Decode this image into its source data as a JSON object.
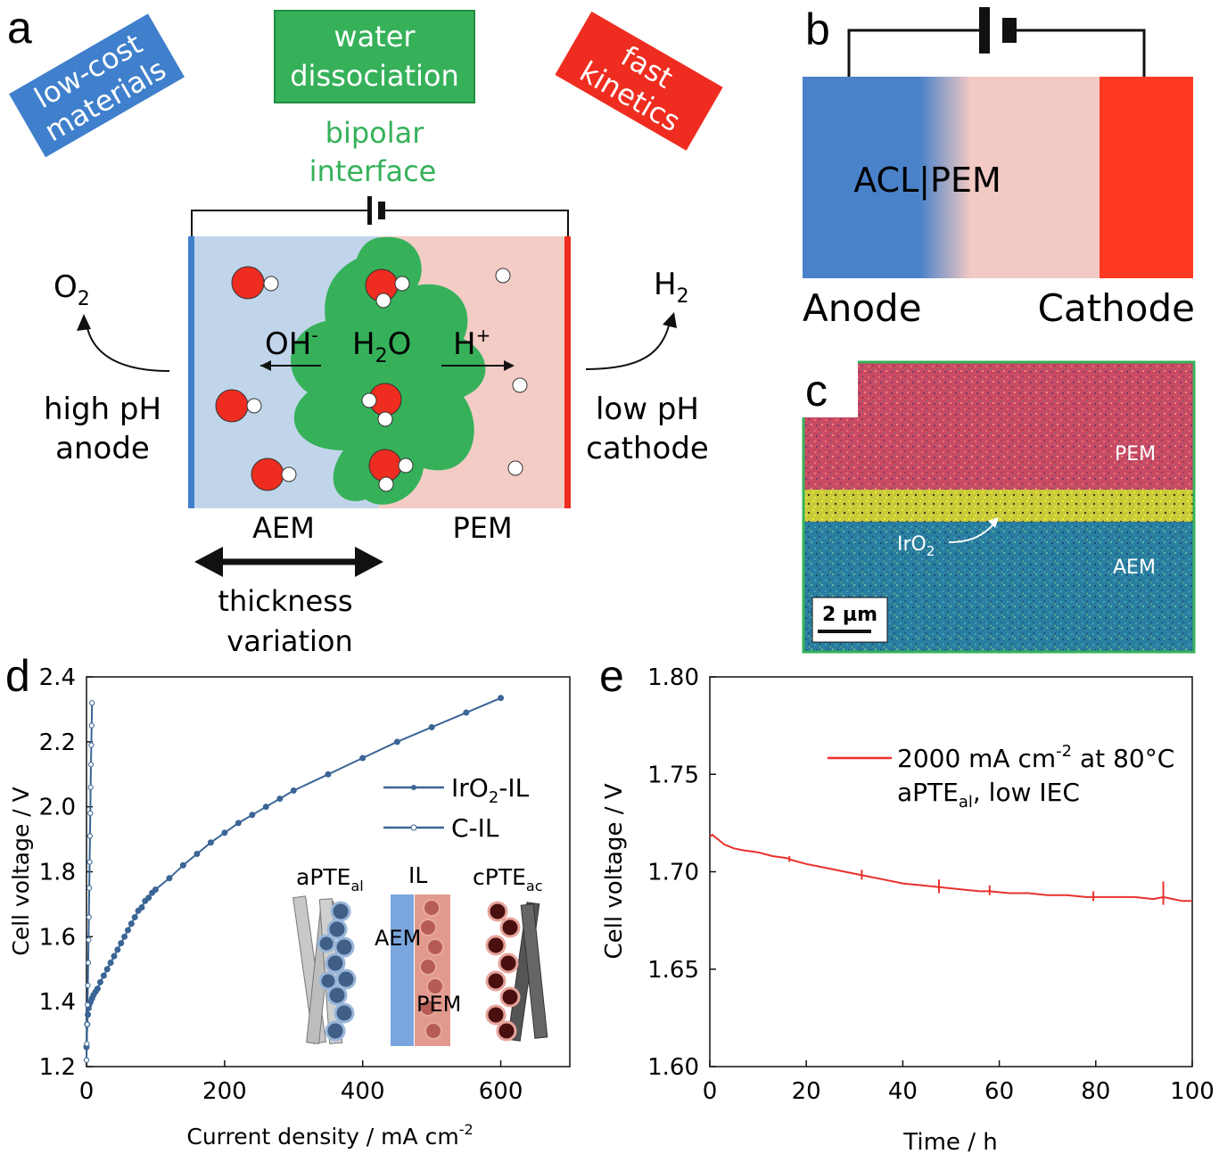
{
  "panel_a": {
    "letter": "a",
    "box_blue": [
      "low-cost",
      "materials"
    ],
    "box_green": [
      "water",
      "dissociation"
    ],
    "box_red": [
      "fast",
      "kinetics"
    ],
    "bipolar": [
      "bipolar",
      "interface"
    ],
    "o2": "O",
    "o2_sub": "2",
    "h2": "H",
    "h2_sub": "2",
    "oh": "OH",
    "oh_sup": "-",
    "h2o": "H",
    "h2o_sub": "2",
    "h2o_o": "O",
    "hplus": "H",
    "hplus_sup": "+",
    "anode_text": [
      "high pH",
      "anode"
    ],
    "cathode_text": [
      "low pH",
      "cathode"
    ],
    "aem": "AEM",
    "pem": "PEM",
    "thickness": [
      "thickness",
      "variation"
    ],
    "colors": {
      "blue": "#3f7fcc",
      "green": "#36b15a",
      "red": "#ee2d20",
      "aem_fill": "#c0d5ea",
      "pem_fill": "#f3ccc6"
    }
  },
  "panel_b": {
    "letter": "b",
    "center_label": "ACL|PEM",
    "anode": "Anode",
    "cathode": "Cathode"
  },
  "panel_c": {
    "letter": "c",
    "pem": "PEM",
    "aem": "AEM",
    "iro2": "IrO",
    "iro2_sub": "2",
    "scale": "2 µm"
  },
  "panel_d": {
    "letter": "d",
    "inset": {
      "aPTE": "aPTE",
      "aPTE_sub": "al",
      "il": "IL",
      "cPTE": "cPTE",
      "cPTE_sub": "ac",
      "aem": "AEM",
      "pem": "PEM"
    }
  },
  "panel_e": {
    "letter": "e"
  },
  "chart_data": [
    {
      "type": "line",
      "panel": "d",
      "xlabel": "Current density / mA cm",
      "xlabel_sup": "-2",
      "ylabel": "Cell voltage / V",
      "xlim": [
        0,
        700
      ],
      "ylim": [
        1.2,
        2.4
      ],
      "xticks": [
        0,
        200,
        400,
        600
      ],
      "yticks": [
        1.2,
        1.4,
        1.6,
        1.8,
        2.0,
        2.2,
        2.4
      ],
      "yticklabels": [
        "1.2",
        "1.4",
        "1.6",
        "1.8",
        "2.0",
        "2.2",
        "2.4"
      ],
      "legend_position": "right",
      "series": [
        {
          "name": "IrO2-IL",
          "legend_main": "IrO",
          "legend_sub": "2",
          "legend_tail": "-IL",
          "marker": "filled",
          "color": "#3a6595",
          "x": [
            0,
            1,
            2,
            3,
            4,
            6,
            8,
            10,
            13,
            16,
            20,
            25,
            30,
            35,
            40,
            45,
            50,
            55,
            60,
            65,
            70,
            75,
            80,
            85,
            90,
            95,
            100,
            120,
            140,
            160,
            180,
            200,
            220,
            240,
            260,
            280,
            300,
            350,
            400,
            450,
            500,
            550,
            600
          ],
          "y": [
            1.26,
            1.33,
            1.36,
            1.38,
            1.39,
            1.4,
            1.41,
            1.42,
            1.43,
            1.44,
            1.46,
            1.48,
            1.5,
            1.52,
            1.54,
            1.56,
            1.58,
            1.6,
            1.62,
            1.64,
            1.66,
            1.68,
            1.69,
            1.71,
            1.72,
            1.735,
            1.745,
            1.78,
            1.82,
            1.855,
            1.89,
            1.92,
            1.95,
            1.975,
            2.0,
            2.025,
            2.05,
            2.1,
            2.15,
            2.2,
            2.245,
            2.29,
            2.335
          ]
        },
        {
          "name": "C-IL",
          "legend_main": "C-IL",
          "marker": "open",
          "color": "#3a6595",
          "x": [
            0,
            0.5,
            1,
            1.5,
            2,
            2.5,
            3,
            3.5,
            4,
            4.5,
            5,
            5.5,
            6,
            6.5,
            7,
            7.5,
            8
          ],
          "y": [
            1.22,
            1.27,
            1.33,
            1.39,
            1.45,
            1.52,
            1.59,
            1.66,
            1.75,
            1.83,
            1.91,
            1.98,
            2.06,
            2.13,
            2.19,
            2.25,
            2.32
          ]
        }
      ]
    },
    {
      "type": "line",
      "panel": "e",
      "xlabel": "Time / h",
      "ylabel": "Cell voltage / V",
      "xlim": [
        0,
        100
      ],
      "ylim": [
        1.6,
        1.8
      ],
      "xticks": [
        0,
        20,
        40,
        60,
        80,
        100
      ],
      "yticks": [
        1.6,
        1.65,
        1.7,
        1.75,
        1.8
      ],
      "yticklabels": [
        "1.60",
        "1.65",
        "1.70",
        "1.75",
        "1.80"
      ],
      "legend_position": "top-right",
      "legend_line1": "2000 mA cm",
      "legend_line1_sup": "-2",
      "legend_line1_tail": " at 80°C",
      "legend_line2": "aPTE",
      "legend_line2_sub": "al",
      "legend_line2_tail": ", low IEC",
      "series": [
        {
          "name": "2000 mA cm-2 at 80°C, aPTEal, low IEC",
          "color": "#e8312d",
          "x": [
            0,
            0.5,
            1,
            2,
            3,
            4,
            5,
            7,
            10,
            13,
            16,
            17,
            20,
            24,
            28,
            32,
            36,
            40,
            44,
            48,
            52,
            56,
            58,
            62,
            66,
            70,
            74,
            78,
            80,
            84,
            88,
            92,
            94,
            96,
            98,
            100
          ],
          "y": [
            1.718,
            1.719,
            1.718,
            1.716,
            1.714,
            1.713,
            1.712,
            1.711,
            1.71,
            1.708,
            1.707,
            1.706,
            1.704,
            1.702,
            1.7,
            1.698,
            1.696,
            1.694,
            1.693,
            1.692,
            1.691,
            1.69,
            1.69,
            1.689,
            1.689,
            1.688,
            1.688,
            1.687,
            1.687,
            1.687,
            1.687,
            1.686,
            1.687,
            1.686,
            1.685,
            1.685
          ]
        }
      ],
      "spikes": [
        {
          "x": 16.5,
          "y_top": 1.708,
          "y_bottom": 1.705
        },
        {
          "x": 31.5,
          "y_top": 1.701,
          "y_bottom": 1.696
        },
        {
          "x": 47.5,
          "y_top": 1.696,
          "y_bottom": 1.689
        },
        {
          "x": 58,
          "y_top": 1.693,
          "y_bottom": 1.688
        },
        {
          "x": 79.5,
          "y_top": 1.69,
          "y_bottom": 1.685
        },
        {
          "x": 94,
          "y_top": 1.695,
          "y_bottom": 1.683
        }
      ]
    }
  ]
}
